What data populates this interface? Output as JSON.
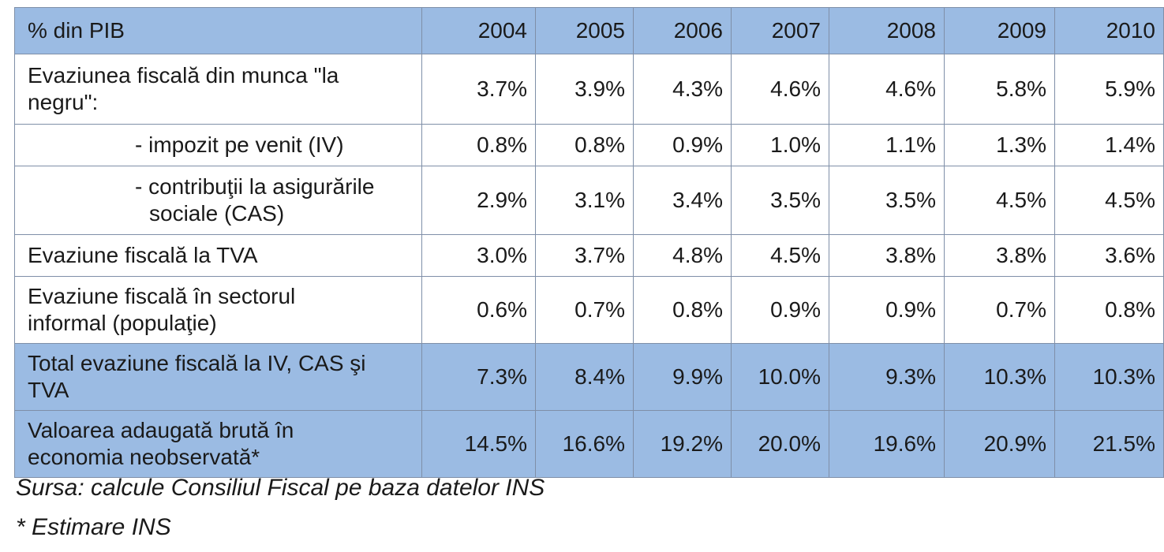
{
  "table": {
    "header": {
      "label": "% din PIB",
      "years": [
        "2004",
        "2005",
        "2006",
        "2007",
        "2008",
        "2009",
        "2010"
      ]
    },
    "rows": [
      {
        "label_line1": "Evaziunea fiscală din munca \"la",
        "label_line2": "negru\":",
        "values": [
          "3.7%",
          "3.9%",
          "4.3%",
          "4.6%",
          "4.6%",
          "5.8%",
          "5.9%"
        ]
      },
      {
        "label_line1": "- impozit pe venit (IV)",
        "values": [
          "0.8%",
          "0.8%",
          "0.9%",
          "1.0%",
          "1.1%",
          "1.3%",
          "1.4%"
        ]
      },
      {
        "label_line1": "- contribuţii la asigurările",
        "label_line2": "sociale (CAS)",
        "values": [
          "2.9%",
          "3.1%",
          "3.4%",
          "3.5%",
          "3.5%",
          "4.5%",
          "4.5%"
        ]
      },
      {
        "label_line1": "Evaziune fiscală la TVA",
        "values": [
          "3.0%",
          "3.7%",
          "4.8%",
          "4.5%",
          "3.8%",
          "3.8%",
          "3.6%"
        ]
      },
      {
        "label_line1": "Evaziune fiscală în sectorul",
        "label_line2": "informal (populaţie)",
        "values": [
          "0.6%",
          "0.7%",
          "0.8%",
          "0.9%",
          "0.9%",
          "0.7%",
          "0.8%"
        ]
      },
      {
        "label_line1": "Total evaziune fiscală la IV, CAS şi",
        "label_line2": "TVA",
        "values": [
          "7.3%",
          "8.4%",
          "9.9%",
          "10.0%",
          "9.3%",
          "10.3%",
          "10.3%"
        ]
      },
      {
        "label_line1": "Valoarea adaugată brută în",
        "label_line2": "economia neobservată*",
        "values": [
          "14.5%",
          "16.6%",
          "19.2%",
          "20.0%",
          "19.6%",
          "20.9%",
          "21.5%"
        ]
      }
    ]
  },
  "notes": {
    "source": "Sursa: calcule Consiliul Fiscal pe baza datelor INS",
    "footnote": "* Estimare INS"
  }
}
